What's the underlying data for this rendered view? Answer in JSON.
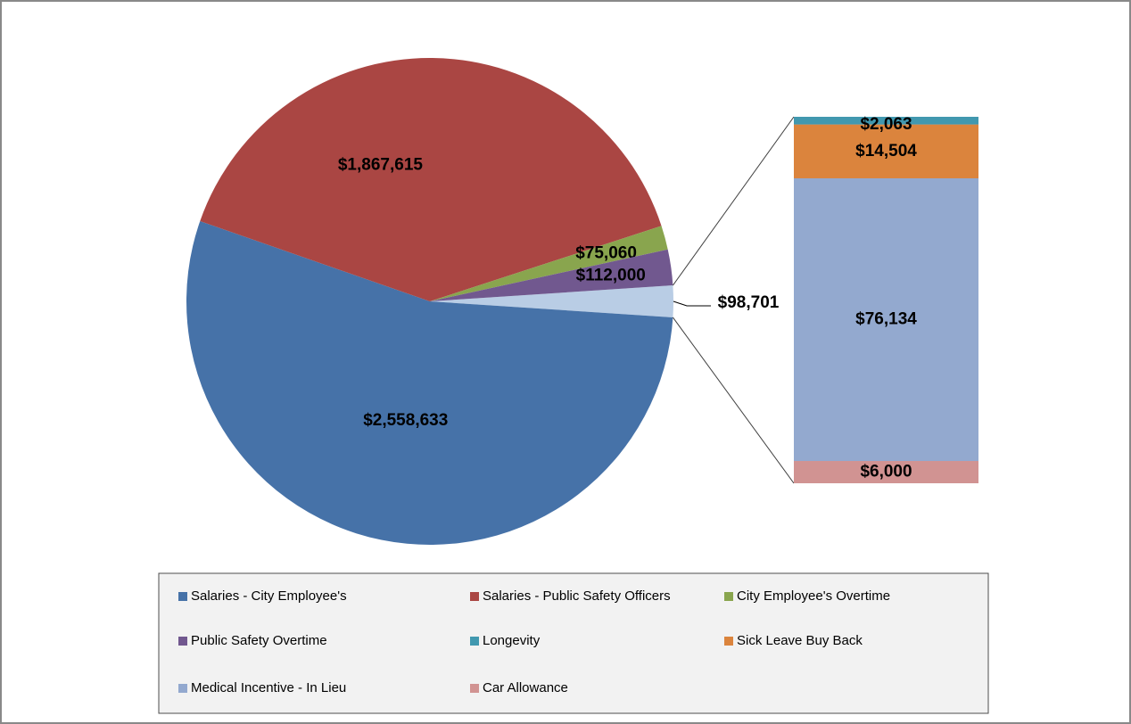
{
  "chart_data": {
    "type": "pie",
    "legend": "bottom",
    "pie": {
      "categories": [
        "Salaries - City Employee's",
        "Salaries - Public Safety Officers",
        "City Employee's Overtime",
        "Public Safety Overtime"
      ],
      "values": [
        2558633,
        1867615,
        75060,
        112000
      ],
      "value_labels": [
        "$2,558,633",
        "$1,867,615",
        "$75,060",
        "$112,000"
      ],
      "colors": [
        "#4672a8",
        "#aa4643",
        "#89a54e",
        "#71588f"
      ],
      "other": {
        "value": 98701,
        "label": "$98,701",
        "color": "#b9cde5"
      }
    },
    "bar": {
      "categories": [
        "Longevity",
        "Sick Leave Buy Back",
        "Medical Incentive - In Lieu",
        "Car Allowance"
      ],
      "values": [
        2063,
        14504,
        76134,
        6000
      ],
      "value_labels": [
        "$2,063",
        "$14,504",
        "$76,134",
        "$6,000"
      ],
      "colors": [
        "#4198af",
        "#db843d",
        "#93a9cf",
        "#d19392"
      ]
    }
  }
}
